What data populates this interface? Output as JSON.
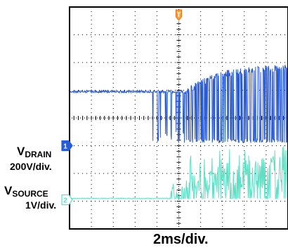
{
  "chart_data": {
    "type": "line",
    "title": "",
    "xlabel": "2ms/div.",
    "ylabel": "",
    "x_unit_per_div": "2ms",
    "grid": true,
    "grid_divisions": {
      "x": 10,
      "y": 8
    },
    "trigger_marker": "T",
    "channels": [
      {
        "id": "1",
        "name": "V_DRAIN",
        "name_main": "V",
        "name_sub": "DRAIN",
        "scale": "200V/div.",
        "color": "#2a5bd7",
        "baseline_div": 4.95,
        "phases": [
          {
            "from_div": 0.0,
            "to_div": 3.8,
            "behavior": "flat at baseline"
          },
          {
            "from_div": 3.8,
            "to_div": 5.3,
            "behavior": "sparse spikes down to ~3.1 div"
          },
          {
            "from_div": 5.3,
            "to_div": 10.0,
            "behavior": "dense switching, upper envelope rising from 5.0 to ~5.9 div, lower edge ~3.1 div"
          }
        ]
      },
      {
        "id": "2",
        "name": "V_SOURCE",
        "name_main": "V",
        "name_sub": "SOURCE",
        "scale": "1V/div.",
        "color": "#5fe0c5",
        "baseline_div": 1.1,
        "phases": [
          {
            "from_div": 0.0,
            "to_div": 4.5,
            "behavior": "flat at baseline"
          },
          {
            "from_div": 4.5,
            "to_div": 5.3,
            "behavior": "small spikes up to ~1.5 div"
          },
          {
            "from_div": 5.3,
            "to_div": 10.0,
            "behavior": "pulses with peaks ~1.5-2.8 div"
          }
        ]
      }
    ]
  }
}
